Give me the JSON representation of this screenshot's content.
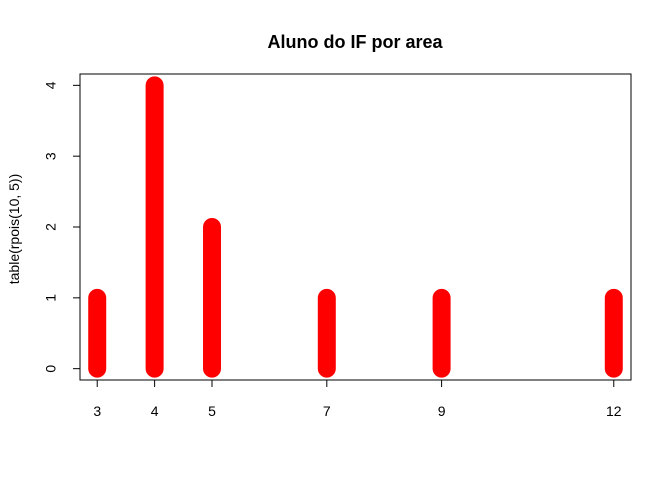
{
  "chart_data": {
    "type": "bar",
    "title": "Aluno do IF por area",
    "xlabel": "",
    "ylabel": "table(rpois(10, 5))",
    "x": [
      3,
      4,
      5,
      7,
      9,
      12
    ],
    "x_tick_labels": [
      "3",
      "4",
      "5",
      "7",
      "9",
      "12"
    ],
    "values": [
      1,
      4,
      2,
      1,
      1,
      1
    ],
    "y_ticks": [
      0,
      1,
      2,
      3,
      4
    ],
    "y_tick_labels": [
      "0",
      "1",
      "2",
      "3",
      "4"
    ],
    "xlim": [
      2.7,
      12.3
    ],
    "ylim": [
      -0.16,
      4.16
    ],
    "bar_color": "#ff0000",
    "grid": false,
    "box": true
  }
}
